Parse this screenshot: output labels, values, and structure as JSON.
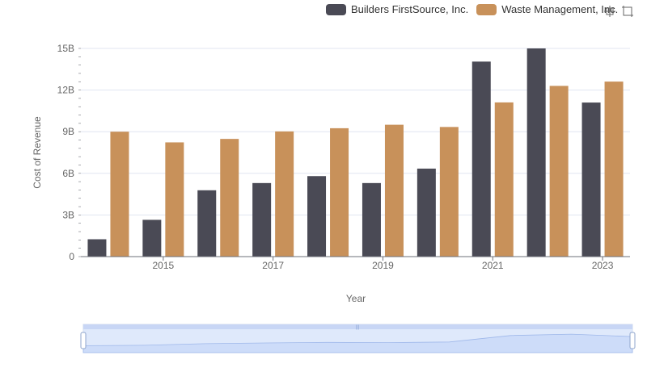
{
  "legend": {
    "items": [
      {
        "label": "Builders FirstSource, Inc.",
        "color": "#4a4a55"
      },
      {
        "label": "Waste Management, Inc.",
        "color": "#c8915a"
      }
    ]
  },
  "toolbox": {
    "icons": [
      "zoom-icon",
      "restore-icon"
    ]
  },
  "chart_data": {
    "type": "bar",
    "xlabel": "Year",
    "ylabel": "Cost of Revenue",
    "categories": [
      "2014",
      "2015",
      "2016",
      "2017",
      "2018",
      "2019",
      "2020",
      "2021",
      "2022",
      "2023"
    ],
    "x_tick_labels": [
      "2015",
      "2017",
      "2019",
      "2021",
      "2023"
    ],
    "y_tick_labels": [
      "0",
      "3B",
      "6B",
      "9B",
      "12B",
      "15B"
    ],
    "ylim": [
      0,
      15000000000
    ],
    "grid": true,
    "legend_position": "top-right",
    "series": [
      {
        "name": "Builders FirstSource, Inc.",
        "color": "#4a4a55",
        "values": [
          1250000000,
          2650000000,
          4780000000,
          5300000000,
          5800000000,
          5300000000,
          6340000000,
          14050000000,
          15000000000,
          11100000000
        ]
      },
      {
        "name": "Waste Management, Inc.",
        "color": "#c8915a",
        "values": [
          9000000000,
          8230000000,
          8480000000,
          9020000000,
          9250000000,
          9500000000,
          9340000000,
          11110000000,
          12300000000,
          12610000000
        ]
      }
    ]
  }
}
